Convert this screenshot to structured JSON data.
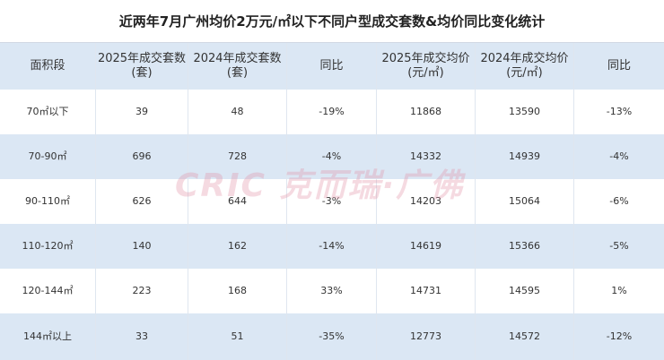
{
  "title": "近两年7月广州均价2万元/㎡以下不同户型成交套数&均价同比变化统计",
  "table": {
    "header": [
      [
        "面积段"
      ],
      [
        "2025年成交套数",
        "(套)"
      ],
      [
        "2024年成交套数",
        "(套)"
      ],
      [
        "同比"
      ],
      [
        "2025年成交均价",
        "(元/㎡)"
      ],
      [
        "2024年成交均价",
        "(元/㎡)"
      ],
      [
        "同比"
      ]
    ],
    "rows": [
      [
        "70㎡以下",
        39,
        48,
        "-19%",
        11868,
        13590,
        "-13%"
      ],
      [
        "70-90㎡",
        696,
        728,
        "-4%",
        14332,
        14939,
        "-4%"
      ],
      [
        "90-110㎡",
        626,
        644,
        "-3%",
        14203,
        15064,
        "-6%"
      ],
      [
        "110-120㎡",
        140,
        162,
        "-14%",
        14619,
        15366,
        "-5%"
      ],
      [
        "120-144㎡",
        223,
        168,
        "33%",
        14731,
        14595,
        "1%"
      ],
      [
        "144㎡以上",
        33,
        51,
        "-35%",
        12773,
        14572,
        "-12%"
      ]
    ]
  },
  "watermark": "CRIC 克而瑞·广佛"
}
